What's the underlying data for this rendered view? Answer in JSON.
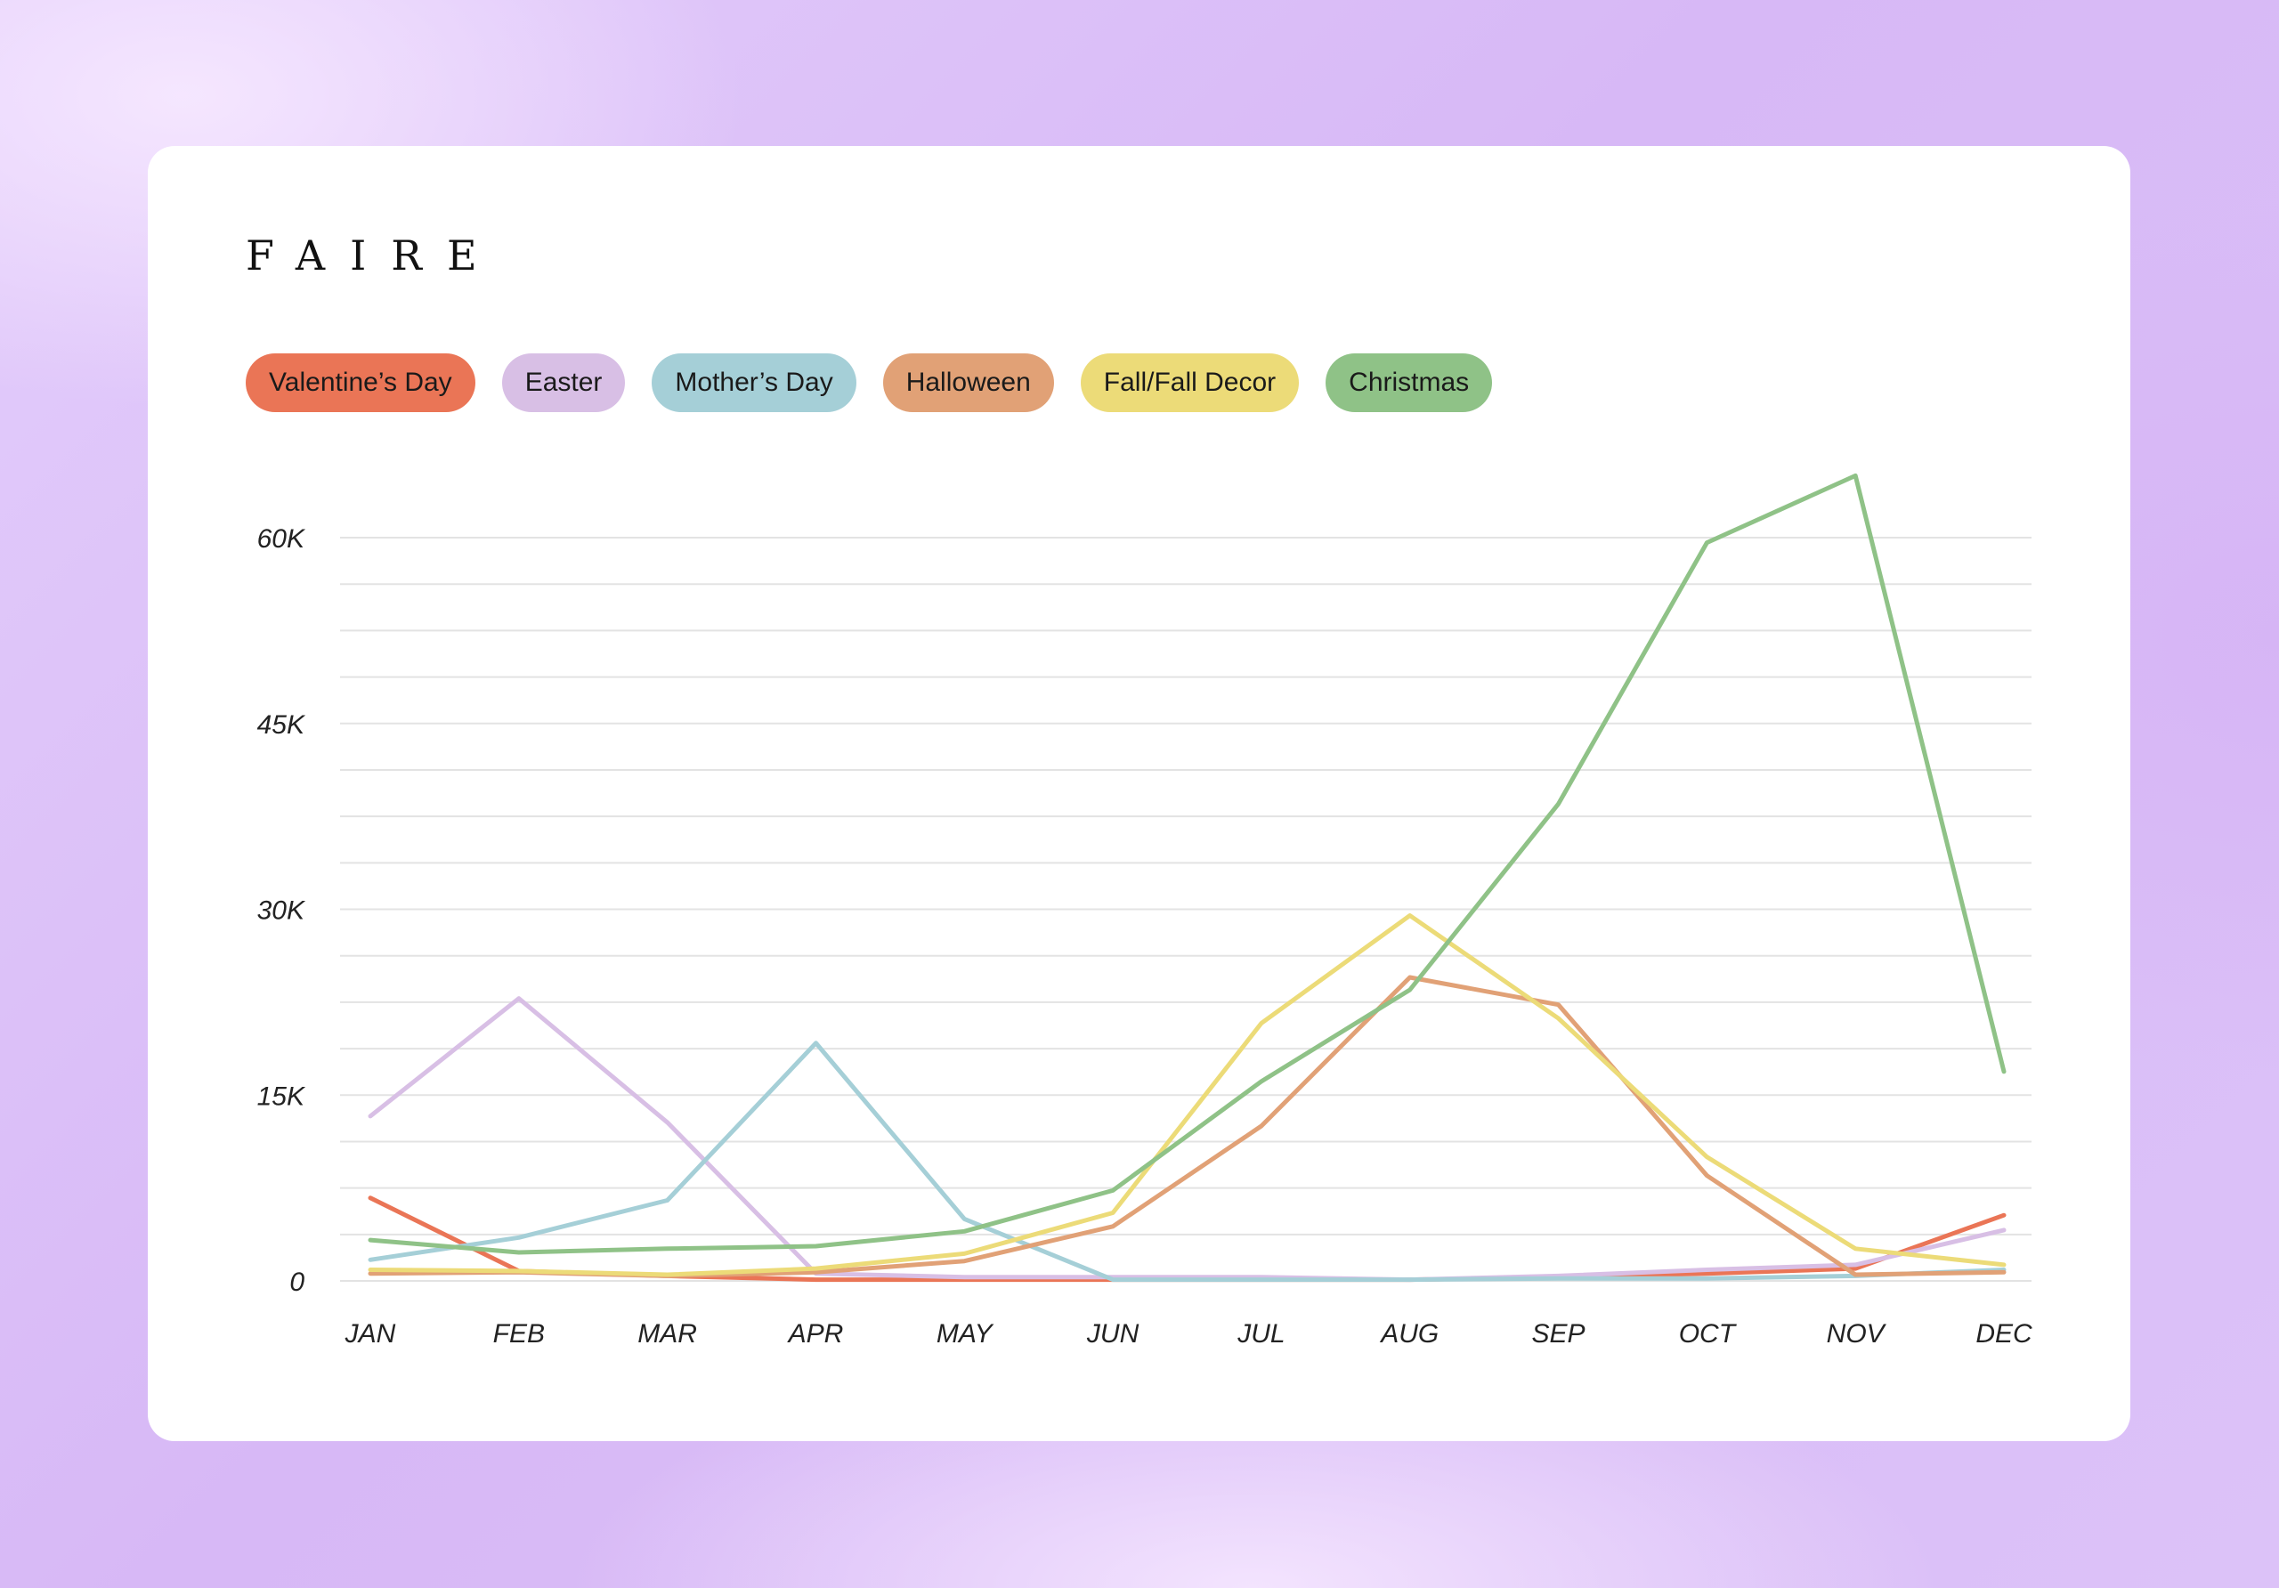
{
  "brand": "FAIRE",
  "chart_data": {
    "type": "line",
    "categories": [
      "JAN",
      "FEB",
      "MAR",
      "APR",
      "MAY",
      "JUN",
      "JUL",
      "AUG",
      "SEP",
      "OCT",
      "NOV",
      "DEC"
    ],
    "ylim": [
      0,
      65000
    ],
    "y_ticks": [
      0,
      15000,
      30000,
      45000,
      60000
    ],
    "y_tick_labels": [
      "0",
      "15K",
      "30K",
      "45K",
      "60K"
    ],
    "grid": true,
    "legend_placement": "top-left",
    "series": [
      {
        "name": "Valentine’s Day",
        "color": "#ea7556",
        "values": [
          6700,
          800,
          400,
          100,
          100,
          100,
          100,
          100,
          300,
          600,
          1000,
          5300
        ]
      },
      {
        "name": "Easter",
        "color": "#d8bfe5",
        "values": [
          13300,
          22800,
          12800,
          600,
          300,
          300,
          300,
          100,
          400,
          900,
          1300,
          4100
        ]
      },
      {
        "name": "Mother’s Day",
        "color": "#a5cfd7",
        "values": [
          1700,
          3500,
          6500,
          19200,
          5000,
          100,
          100,
          100,
          200,
          200,
          400,
          900
        ]
      },
      {
        "name": "Halloween",
        "color": "#e1a176",
        "values": [
          600,
          700,
          400,
          700,
          1600,
          4400,
          12500,
          24500,
          22300,
          8500,
          500,
          700
        ]
      },
      {
        "name": "Fall/Fall Decor",
        "color": "#ecdb78",
        "values": [
          900,
          800,
          500,
          1000,
          2200,
          5500,
          20800,
          29500,
          21200,
          10000,
          2600,
          1300
        ]
      },
      {
        "name": "Christmas",
        "color": "#8fc287",
        "values": [
          3300,
          2300,
          2600,
          2800,
          4000,
          7300,
          16100,
          23500,
          38500,
          59600,
          65000,
          16900
        ]
      }
    ]
  }
}
